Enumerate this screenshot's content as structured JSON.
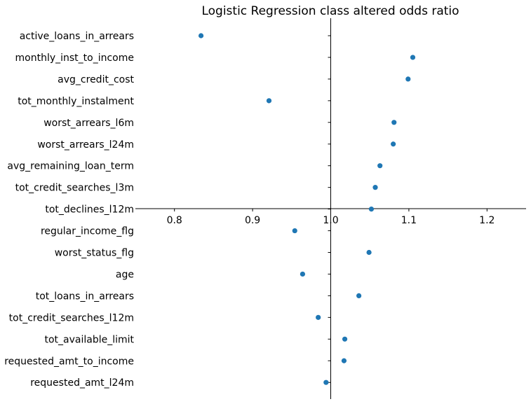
{
  "chart_data": {
    "type": "scatter",
    "title": "Logistic Regression class altered odds ratio",
    "xlabel": "",
    "ylabel": "",
    "xlim": [
      0.75,
      1.25
    ],
    "xticks": [
      0.8,
      0.9,
      1.0,
      1.1,
      1.2
    ],
    "xtick_labels": [
      "0.8",
      "0.9",
      "1.0",
      "1.1",
      "1.2"
    ],
    "reference_line_x": 1.0,
    "grid": false,
    "marker_color": "#1f77b4",
    "categories": [
      "active_loans_in_arrears",
      "monthly_inst_to_income",
      "avg_credit_cost",
      "tot_monthly_instalment",
      "worst_arrears_l6m",
      "worst_arrears_l24m",
      "avg_remaining_loan_term",
      "tot_credit_searches_l3m",
      "tot_declines_l12m",
      "regular_income_flg",
      "worst_status_flg",
      "age",
      "tot_loans_in_arrears",
      "tot_credit_searches_l12m",
      "tot_available_limit",
      "requested_amt_to_income",
      "requested_amt_l24m"
    ],
    "values": [
      0.834,
      1.105,
      1.099,
      0.921,
      1.081,
      1.08,
      1.063,
      1.057,
      1.052,
      0.954,
      1.049,
      0.964,
      1.036,
      0.984,
      1.018,
      1.017,
      0.994
    ]
  }
}
